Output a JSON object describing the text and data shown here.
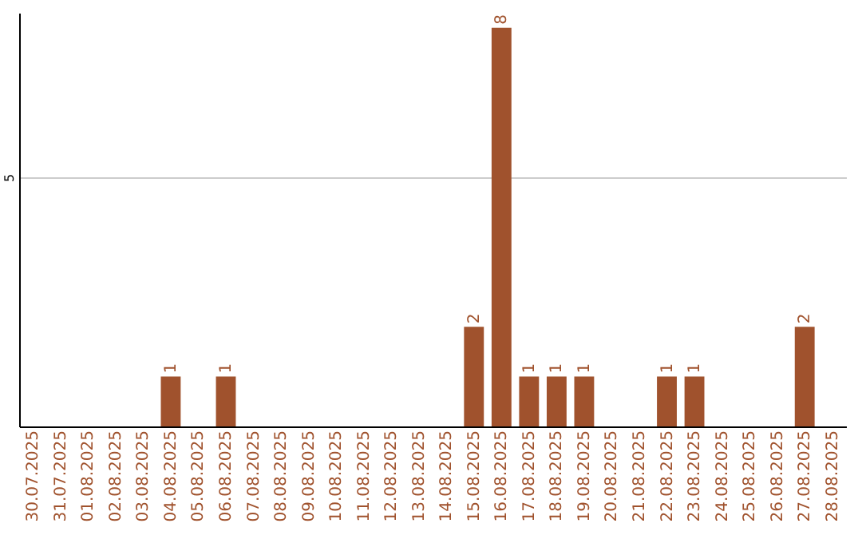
{
  "chart_data": {
    "type": "bar",
    "categories": [
      "30.07.2025",
      "31.07.2025",
      "01.08.2025",
      "02.08.2025",
      "03.08.2025",
      "04.08.2025",
      "05.08.2025",
      "06.08.2025",
      "07.08.2025",
      "08.08.2025",
      "09.08.2025",
      "10.08.2025",
      "11.08.2025",
      "12.08.2025",
      "13.08.2025",
      "14.08.2025",
      "15.08.2025",
      "16.08.2025",
      "17.08.2025",
      "18.08.2025",
      "19.08.2025",
      "20.08.2025",
      "21.08.2025",
      "22.08.2025",
      "23.08.2025",
      "24.08.2025",
      "25.08.2025",
      "26.08.2025",
      "27.08.2025",
      "28.08.2025"
    ],
    "values": [
      0,
      0,
      0,
      0,
      0,
      1,
      0,
      1,
      0,
      0,
      0,
      0,
      0,
      0,
      0,
      0,
      2,
      8,
      1,
      1,
      1,
      0,
      0,
      1,
      1,
      0,
      0,
      0,
      2,
      0
    ],
    "value_labels": [
      null,
      null,
      null,
      null,
      null,
      "1",
      null,
      "1",
      null,
      null,
      null,
      null,
      null,
      null,
      null,
      null,
      "2",
      "8",
      "1",
      "1",
      "1",
      null,
      null,
      "1",
      "1",
      null,
      null,
      null,
      "2",
      null
    ],
    "color": "#a0522d",
    "ylim": [
      0,
      8.3
    ],
    "yticks": [
      5
    ],
    "grid": "y"
  }
}
